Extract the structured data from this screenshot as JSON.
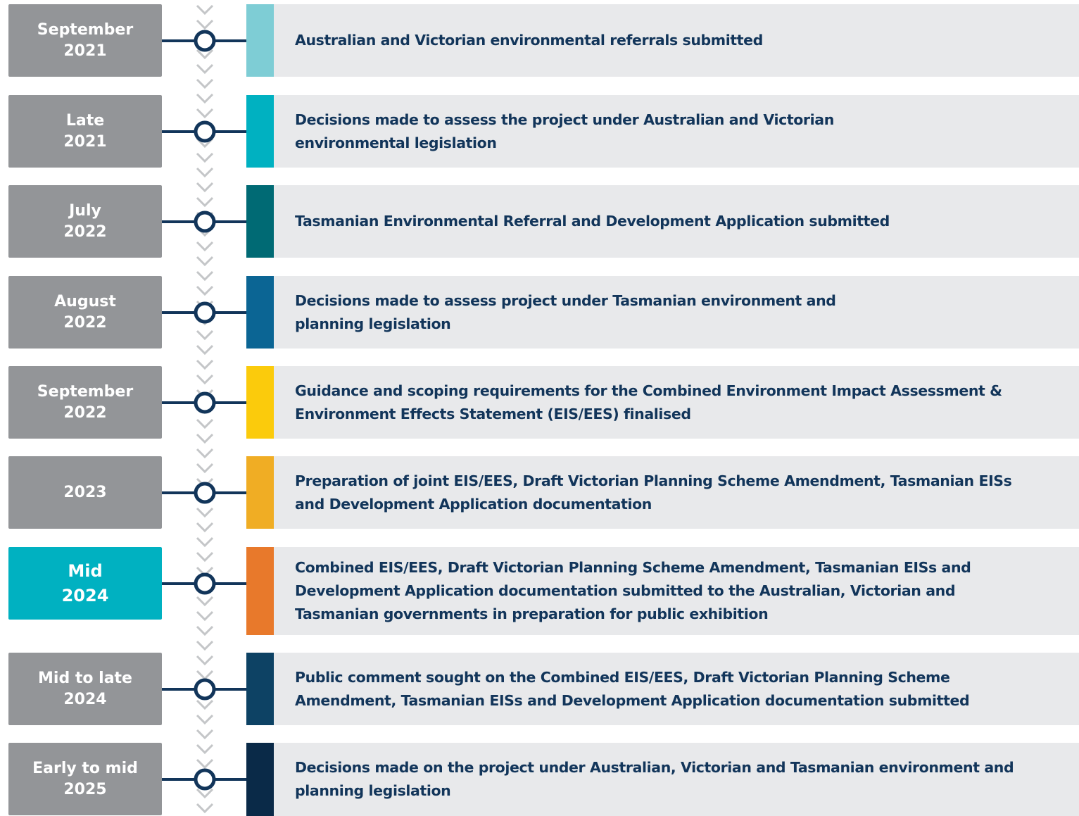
{
  "rows": [
    {
      "date": "September\n2021",
      "text": "Australian and Victorian environmental referrals submitted",
      "color": "#7ecdd5"
    },
    {
      "date": "Late\n2021",
      "text": "Decisions made to assess the project under Australian and Victorian\nenvironmental legislation",
      "color": "#00b1c1"
    },
    {
      "date": "July\n2022",
      "text": "Tasmanian Environmental Referral and Development Application submitted",
      "color": "#006a74"
    },
    {
      "date": "August\n2022",
      "text": "Decisions made to assess project under Tasmanian environment and\nplanning legislation",
      "color": "#0b6594"
    },
    {
      "date": "September\n2022",
      "text": "Guidance and scoping requirements for the Combined Environment Impact Assessment &\nEnvironment Effects Statement (EIS/EES) finalised",
      "color": "#fbcb0c"
    },
    {
      "date": "2023",
      "text": "Preparation of joint EIS/EES, Draft Victorian Planning Scheme Amendment, Tasmanian EISs\nand Development Application documentation",
      "color": "#f0ad24"
    },
    {
      "date": "Mid\n2024",
      "text": "Combined EIS/EES, Draft Victorian Planning Scheme Amendment, Tasmanian EISs and\nDevelopment Application documentation submitted to the Australian, Victorian and\nTasmanian governments in preparation for public exhibition",
      "color": "#e8792b",
      "highlighted": true
    },
    {
      "date": "Mid to late\n2024",
      "text": "Public comment sought on the Combined EIS/EES, Draft Victorian Planning Scheme\nAmendment, Tasmanian EISs and Development Application documentation submitted",
      "color": "#0d4264"
    },
    {
      "date": "Early to mid\n2025",
      "text": "Decisions made on the project under Australian, Victorian and Tasmanian environment and\nplanning legislation",
      "color": "#0a2a48"
    }
  ]
}
